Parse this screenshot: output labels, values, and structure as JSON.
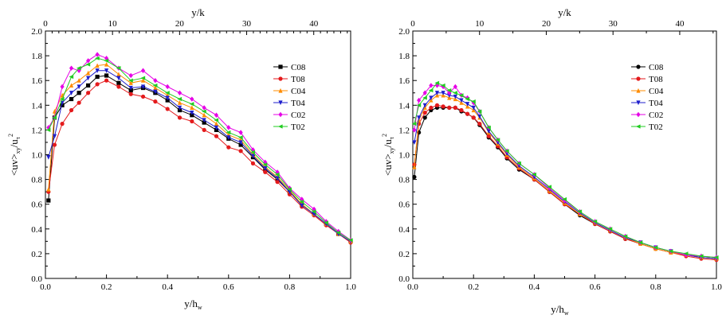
{
  "chart_data": [
    {
      "type": "line",
      "xlabel": "y/h",
      "xlabel_sub": "w",
      "top_xlabel": "y/k",
      "ylabel_parts": [
        "<uv>",
        "xy",
        "/u",
        "τ",
        "2"
      ],
      "xlim": [
        0,
        1.0
      ],
      "ylim": [
        0,
        2.0
      ],
      "top_xlim": [
        0,
        45.5
      ],
      "xticks": [
        "0.0",
        "0.2",
        "0.4",
        "0.6",
        "0.8",
        "1.0"
      ],
      "yticks": [
        "0.0",
        "0.2",
        "0.4",
        "0.6",
        "0.8",
        "1.0",
        "1.2",
        "1.4",
        "1.6",
        "1.8",
        "2.0"
      ],
      "top_xticks": [
        "0",
        "10",
        "20",
        "30",
        "40"
      ],
      "legend_position": "upper-right",
      "grid": false,
      "series": [
        {
          "name": "C08",
          "color": "#000000",
          "marker": "square",
          "x": [
            0.01,
            0.03,
            0.055,
            0.085,
            0.11,
            0.14,
            0.17,
            0.2,
            0.24,
            0.28,
            0.32,
            0.36,
            0.4,
            0.44,
            0.48,
            0.52,
            0.56,
            0.6,
            0.64,
            0.68,
            0.72,
            0.76,
            0.8,
            0.84,
            0.88,
            0.92,
            0.96,
            1.0
          ],
          "y": [
            0.63,
            1.3,
            1.4,
            1.45,
            1.5,
            1.56,
            1.63,
            1.64,
            1.58,
            1.52,
            1.54,
            1.5,
            1.44,
            1.36,
            1.32,
            1.26,
            1.2,
            1.13,
            1.08,
            0.98,
            0.88,
            0.8,
            0.7,
            0.6,
            0.52,
            0.44,
            0.36,
            0.3
          ]
        },
        {
          "name": "T08",
          "color": "#e41a1c",
          "marker": "circle",
          "x": [
            0.01,
            0.03,
            0.055,
            0.085,
            0.11,
            0.14,
            0.17,
            0.2,
            0.24,
            0.28,
            0.32,
            0.36,
            0.4,
            0.44,
            0.48,
            0.52,
            0.56,
            0.6,
            0.64,
            0.68,
            0.72,
            0.76,
            0.8,
            0.84,
            0.88,
            0.92,
            0.96,
            1.0
          ],
          "y": [
            0.7,
            1.08,
            1.25,
            1.36,
            1.42,
            1.5,
            1.57,
            1.6,
            1.55,
            1.49,
            1.47,
            1.43,
            1.37,
            1.3,
            1.27,
            1.2,
            1.15,
            1.06,
            1.03,
            0.93,
            0.86,
            0.78,
            0.68,
            0.58,
            0.51,
            0.43,
            0.36,
            0.29
          ]
        },
        {
          "name": "C04",
          "color": "#ff8c00",
          "marker": "triangle-up",
          "x": [
            0.01,
            0.03,
            0.055,
            0.085,
            0.11,
            0.14,
            0.17,
            0.2,
            0.24,
            0.28,
            0.32,
            0.36,
            0.4,
            0.44,
            0.48,
            0.52,
            0.56,
            0.6,
            0.64,
            0.68,
            0.72,
            0.76,
            0.8,
            0.84,
            0.88,
            0.92,
            0.96,
            1.0
          ],
          "y": [
            0.72,
            1.35,
            1.48,
            1.56,
            1.6,
            1.66,
            1.72,
            1.73,
            1.65,
            1.58,
            1.6,
            1.54,
            1.48,
            1.42,
            1.38,
            1.32,
            1.25,
            1.16,
            1.12,
            1.0,
            0.9,
            0.82,
            0.71,
            0.6,
            0.52,
            0.44,
            0.36,
            0.3
          ]
        },
        {
          "name": "T04",
          "color": "#1f1fcc",
          "marker": "triangle-down",
          "x": [
            0.01,
            0.03,
            0.055,
            0.085,
            0.11,
            0.14,
            0.17,
            0.2,
            0.24,
            0.28,
            0.32,
            0.36,
            0.4,
            0.44,
            0.48,
            0.52,
            0.56,
            0.6,
            0.64,
            0.68,
            0.72,
            0.76,
            0.8,
            0.84,
            0.88,
            0.92,
            0.96,
            1.0
          ],
          "y": [
            0.98,
            1.15,
            1.42,
            1.5,
            1.55,
            1.62,
            1.68,
            1.68,
            1.62,
            1.54,
            1.55,
            1.51,
            1.46,
            1.38,
            1.34,
            1.28,
            1.22,
            1.14,
            1.1,
            0.99,
            0.89,
            0.81,
            0.7,
            0.59,
            0.52,
            0.44,
            0.36,
            0.3
          ]
        },
        {
          "name": "C02",
          "color": "#e600e6",
          "marker": "diamond",
          "x": [
            0.01,
            0.03,
            0.055,
            0.085,
            0.11,
            0.14,
            0.17,
            0.2,
            0.24,
            0.28,
            0.32,
            0.36,
            0.4,
            0.44,
            0.48,
            0.52,
            0.56,
            0.6,
            0.64,
            0.68,
            0.72,
            0.76,
            0.8,
            0.84,
            0.88,
            0.92,
            0.96,
            1.0
          ],
          "y": [
            1.22,
            1.3,
            1.55,
            1.7,
            1.68,
            1.76,
            1.81,
            1.78,
            1.7,
            1.64,
            1.68,
            1.6,
            1.55,
            1.5,
            1.45,
            1.38,
            1.32,
            1.22,
            1.18,
            1.04,
            0.94,
            0.86,
            0.73,
            0.64,
            0.56,
            0.46,
            0.38,
            0.31
          ]
        },
        {
          "name": "T02",
          "color": "#22cc22",
          "marker": "triangle-left",
          "x": [
            0.01,
            0.03,
            0.055,
            0.085,
            0.11,
            0.14,
            0.17,
            0.2,
            0.24,
            0.28,
            0.32,
            0.36,
            0.4,
            0.44,
            0.48,
            0.52,
            0.56,
            0.6,
            0.64,
            0.68,
            0.72,
            0.76,
            0.8,
            0.84,
            0.88,
            0.92,
            0.96,
            1.0
          ],
          "y": [
            1.2,
            1.3,
            1.45,
            1.63,
            1.7,
            1.73,
            1.78,
            1.76,
            1.7,
            1.6,
            1.62,
            1.56,
            1.5,
            1.45,
            1.41,
            1.35,
            1.28,
            1.18,
            1.14,
            1.02,
            0.92,
            0.84,
            0.72,
            0.62,
            0.54,
            0.45,
            0.37,
            0.31
          ]
        }
      ]
    },
    {
      "type": "line",
      "xlabel": "y/h",
      "xlabel_sub": "w",
      "top_xlabel": "y/k",
      "ylabel_parts": [
        "<uv>",
        "xy",
        "/u",
        "τ",
        "2"
      ],
      "xlim": [
        0,
        1.0
      ],
      "ylim": [
        0,
        2.0
      ],
      "top_xlim": [
        0,
        45.5
      ],
      "xticks": [
        "0.0",
        "0.2",
        "0.4",
        "0.6",
        "0.8",
        "1.0"
      ],
      "yticks": [
        "0.0",
        "0.2",
        "0.4",
        "0.6",
        "0.8",
        "1.0",
        "1.2",
        "1.4",
        "1.6",
        "1.8",
        "2.0"
      ],
      "top_xticks": [
        "0",
        "10",
        "20",
        "30",
        "40"
      ],
      "legend_position": "upper-right",
      "grid": false,
      "series": [
        {
          "name": "C08",
          "color": "#000000",
          "marker": "circle",
          "x": [
            0.005,
            0.02,
            0.04,
            0.06,
            0.08,
            0.1,
            0.12,
            0.14,
            0.16,
            0.18,
            0.2,
            0.22,
            0.25,
            0.28,
            0.31,
            0.35,
            0.4,
            0.45,
            0.5,
            0.55,
            0.6,
            0.65,
            0.7,
            0.75,
            0.8,
            0.85,
            0.9,
            0.95,
            1.0
          ],
          "y": [
            0.82,
            1.18,
            1.3,
            1.36,
            1.38,
            1.38,
            1.38,
            1.38,
            1.35,
            1.33,
            1.3,
            1.24,
            1.14,
            1.06,
            0.97,
            0.88,
            0.8,
            0.7,
            0.6,
            0.51,
            0.44,
            0.38,
            0.32,
            0.28,
            0.24,
            0.21,
            0.19,
            0.17,
            0.16
          ]
        },
        {
          "name": "T08",
          "color": "#e41a1c",
          "marker": "circle",
          "x": [
            0.005,
            0.02,
            0.04,
            0.06,
            0.08,
            0.1,
            0.12,
            0.14,
            0.16,
            0.18,
            0.2,
            0.22,
            0.25,
            0.28,
            0.31,
            0.35,
            0.4,
            0.45,
            0.5,
            0.55,
            0.6,
            0.65,
            0.7,
            0.75,
            0.8,
            0.85,
            0.9,
            0.95,
            1.0
          ],
          "y": [
            0.92,
            1.25,
            1.34,
            1.38,
            1.4,
            1.39,
            1.38,
            1.38,
            1.36,
            1.33,
            1.3,
            1.25,
            1.15,
            1.07,
            0.98,
            0.89,
            0.8,
            0.7,
            0.6,
            0.52,
            0.44,
            0.38,
            0.32,
            0.28,
            0.24,
            0.21,
            0.18,
            0.16,
            0.15
          ]
        },
        {
          "name": "C04",
          "color": "#ff8c00",
          "marker": "triangle-up",
          "x": [
            0.005,
            0.02,
            0.04,
            0.06,
            0.08,
            0.1,
            0.12,
            0.14,
            0.16,
            0.18,
            0.2,
            0.22,
            0.25,
            0.28,
            0.31,
            0.35,
            0.4,
            0.45,
            0.5,
            0.55,
            0.6,
            0.65,
            0.7,
            0.75,
            0.8,
            0.85,
            0.9,
            0.95,
            1.0
          ],
          "y": [
            0.9,
            1.28,
            1.38,
            1.44,
            1.48,
            1.48,
            1.46,
            1.45,
            1.42,
            1.39,
            1.36,
            1.3,
            1.18,
            1.09,
            1.0,
            0.9,
            0.81,
            0.71,
            0.61,
            0.52,
            0.45,
            0.39,
            0.33,
            0.28,
            0.24,
            0.21,
            0.19,
            0.17,
            0.16
          ]
        },
        {
          "name": "T04",
          "color": "#1f1fcc",
          "marker": "triangle-down",
          "x": [
            0.005,
            0.02,
            0.04,
            0.06,
            0.08,
            0.1,
            0.12,
            0.14,
            0.16,
            0.18,
            0.2,
            0.22,
            0.25,
            0.28,
            0.31,
            0.35,
            0.4,
            0.45,
            0.5,
            0.55,
            0.6,
            0.65,
            0.7,
            0.75,
            0.8,
            0.85,
            0.9,
            0.95,
            1.0
          ],
          "y": [
            1.1,
            1.3,
            1.4,
            1.46,
            1.5,
            1.5,
            1.48,
            1.47,
            1.44,
            1.41,
            1.38,
            1.31,
            1.19,
            1.1,
            1.01,
            0.91,
            0.82,
            0.72,
            0.62,
            0.53,
            0.45,
            0.39,
            0.33,
            0.29,
            0.25,
            0.22,
            0.19,
            0.17,
            0.16
          ]
        },
        {
          "name": "C02",
          "color": "#e600e6",
          "marker": "diamond",
          "x": [
            0.005,
            0.02,
            0.04,
            0.06,
            0.08,
            0.1,
            0.12,
            0.14,
            0.16,
            0.18,
            0.2,
            0.22,
            0.25,
            0.28,
            0.31,
            0.35,
            0.4,
            0.45,
            0.5,
            0.55,
            0.6,
            0.65,
            0.7,
            0.75,
            0.8,
            0.85,
            0.9,
            0.95,
            1.0
          ],
          "y": [
            1.2,
            1.44,
            1.5,
            1.56,
            1.56,
            1.55,
            1.5,
            1.55,
            1.48,
            1.46,
            1.42,
            1.35,
            1.22,
            1.12,
            1.03,
            0.93,
            0.84,
            0.73,
            0.63,
            0.54,
            0.46,
            0.4,
            0.34,
            0.29,
            0.25,
            0.22,
            0.19,
            0.18,
            0.17
          ]
        },
        {
          "name": "T02",
          "color": "#22cc22",
          "marker": "triangle-left",
          "x": [
            0.005,
            0.02,
            0.04,
            0.06,
            0.08,
            0.1,
            0.12,
            0.14,
            0.16,
            0.18,
            0.2,
            0.22,
            0.25,
            0.28,
            0.31,
            0.35,
            0.4,
            0.45,
            0.5,
            0.55,
            0.6,
            0.65,
            0.7,
            0.75,
            0.8,
            0.85,
            0.9,
            0.95,
            1.0
          ],
          "y": [
            1.25,
            1.4,
            1.46,
            1.52,
            1.58,
            1.56,
            1.52,
            1.5,
            1.48,
            1.45,
            1.43,
            1.35,
            1.22,
            1.12,
            1.03,
            0.93,
            0.84,
            0.74,
            0.64,
            0.54,
            0.46,
            0.4,
            0.34,
            0.29,
            0.25,
            0.22,
            0.2,
            0.18,
            0.17
          ]
        }
      ]
    }
  ]
}
